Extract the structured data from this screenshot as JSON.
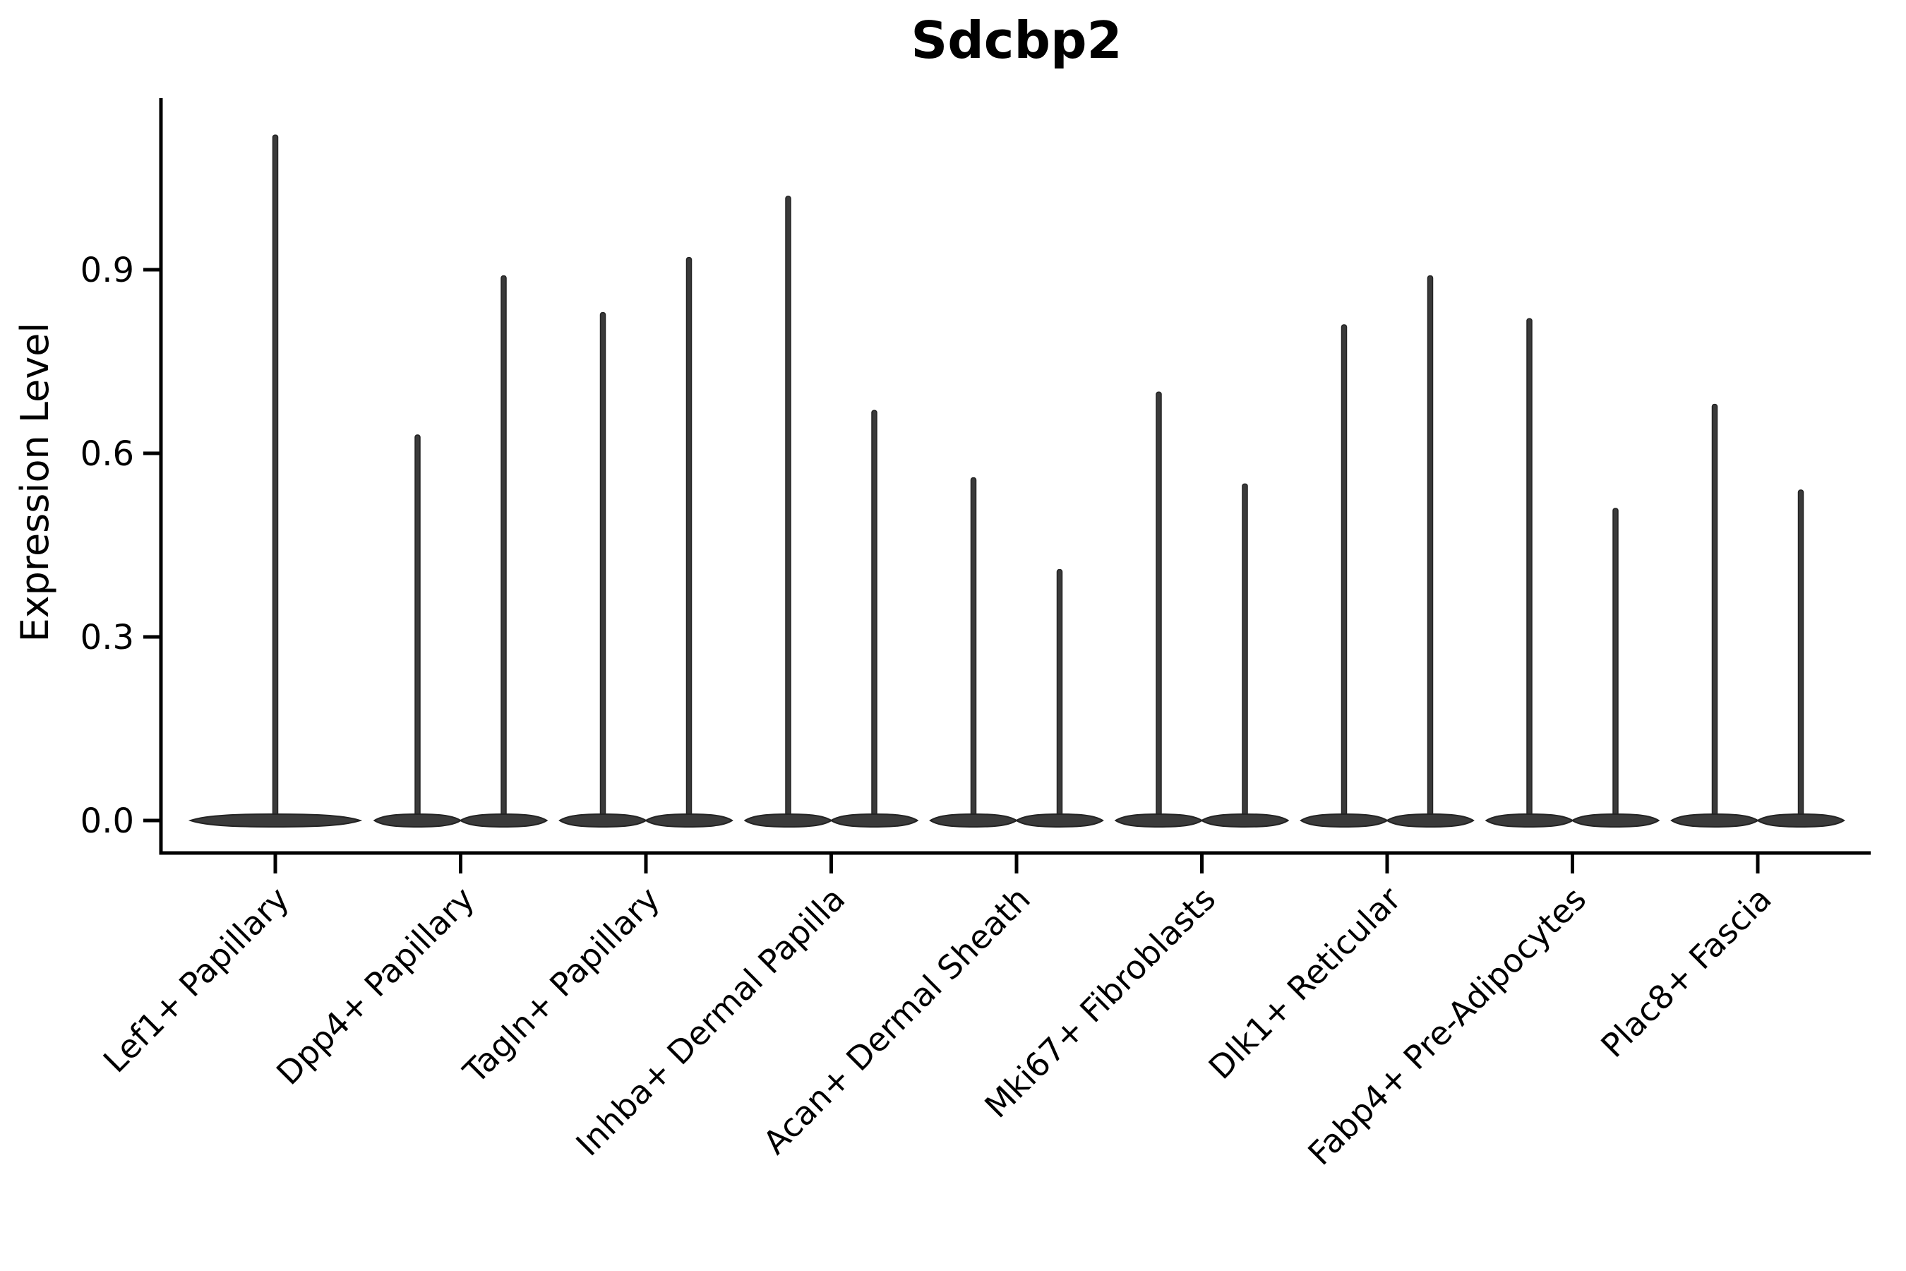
{
  "chart_data": {
    "type": "violin",
    "title": "Sdcbp2",
    "ylabel": "Expression Level",
    "xlabel": "",
    "ytick_labels": [
      "0.0",
      "0.3",
      "0.6",
      "0.9"
    ],
    "ytick_values": [
      0.0,
      0.3,
      0.6,
      0.9
    ],
    "ylim": [
      -0.05,
      1.18
    ],
    "grid": false,
    "legend_position": "none",
    "categories": [
      "Lef1+ Papillary",
      "Dpp4+ Papillary",
      "Tagln+ Papillary",
      "Inhba+ Dermal Papilla",
      "Acan+ Dermal Sheath",
      "Mki67+ Fibroblasts",
      "Dlk1+ Reticular",
      "Fabp4+ Pre-Adipocytes",
      "Plac8+ Fascia"
    ],
    "violins": [
      {
        "category": "Lef1+ Papillary",
        "group_max_expression": [
          1.12
        ]
      },
      {
        "category": "Dpp4+ Papillary",
        "group_max_expression": [
          0.63,
          0.89
        ]
      },
      {
        "category": "Tagln+ Papillary",
        "group_max_expression": [
          0.83,
          0.92
        ]
      },
      {
        "category": "Inhba+ Dermal Papilla",
        "group_max_expression": [
          1.02,
          0.67
        ]
      },
      {
        "category": "Acan+ Dermal Sheath",
        "group_max_expression": [
          0.56,
          0.41
        ]
      },
      {
        "category": "Mki67+ Fibroblasts",
        "group_max_expression": [
          0.7,
          0.55
        ]
      },
      {
        "category": "Dlk1+ Reticular",
        "group_max_expression": [
          0.81,
          0.89
        ]
      },
      {
        "category": "Fabp4+ Pre-Adipocytes",
        "group_max_expression": [
          0.82,
          0.51
        ]
      },
      {
        "category": "Plac8+ Fascia",
        "group_max_expression": [
          0.68,
          0.54
        ]
      }
    ],
    "violin_baseline_value": 0.0,
    "violin_shape": "flat wide base at 0 with thin spike up to max expression",
    "colors": {
      "violin_fill": "#3a3a3a",
      "violin_stroke": "#232323",
      "axis": "#000000",
      "background": "#ffffff"
    }
  }
}
